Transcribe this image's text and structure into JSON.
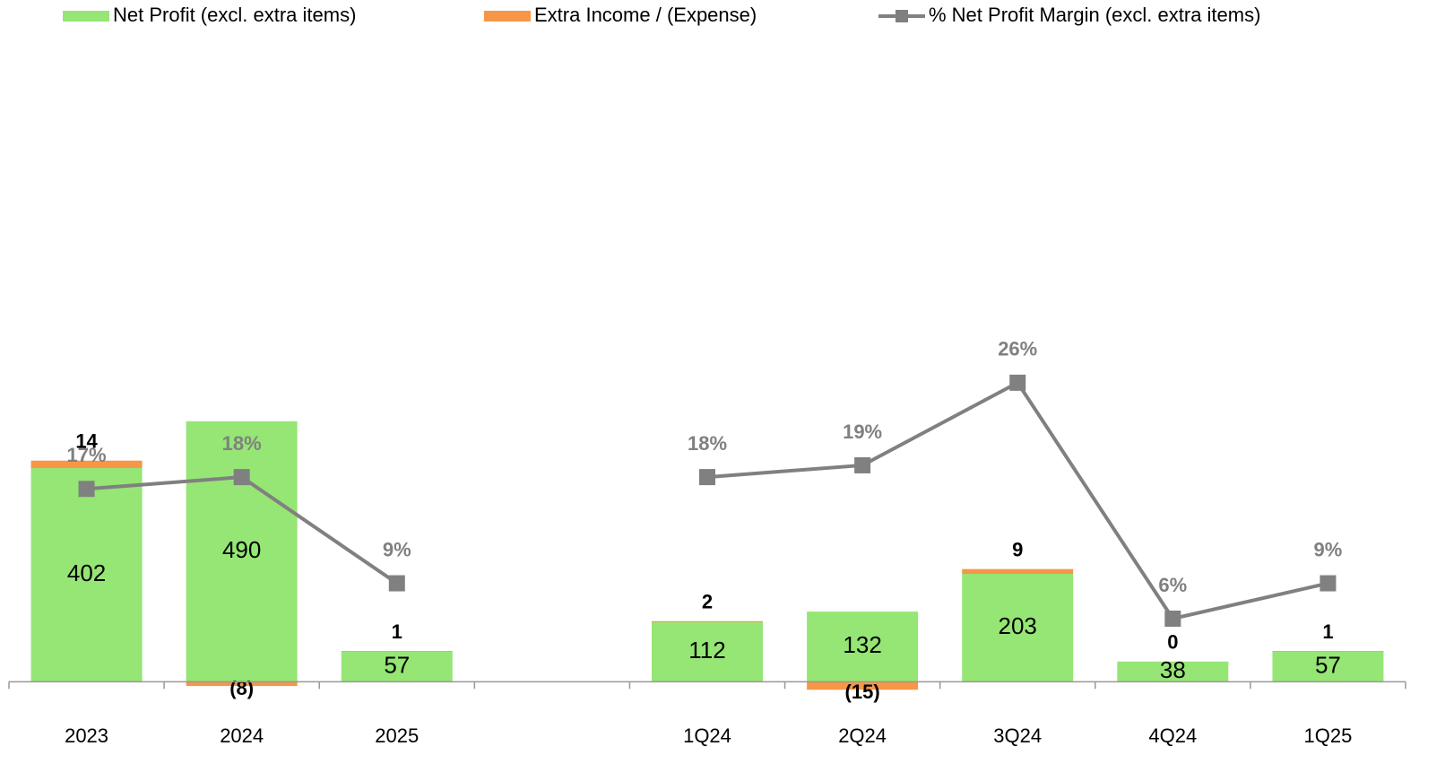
{
  "chart_data": {
    "type": "bar",
    "categories": [
      "2023",
      "2024",
      "2025",
      null,
      "1Q24",
      "2Q24",
      "3Q24",
      "4Q24",
      "1Q25"
    ],
    "series": [
      {
        "name": "Net Profit (excl. extra items)",
        "color": "#95e675",
        "values": [
          402,
          490,
          57,
          null,
          112,
          132,
          203,
          38,
          57
        ]
      },
      {
        "name": "Extra Income / (Expense)",
        "color": "#f79646",
        "values": [
          14,
          -8,
          1,
          null,
          2,
          -15,
          9,
          0,
          1
        ],
        "value_labels": [
          "14",
          "(8)",
          "1",
          null,
          "2",
          "(15)",
          "9",
          "0",
          "1"
        ]
      },
      {
        "name": "% Net Profit Margin (excl. extra items)",
        "color": "#808080",
        "type": "line",
        "axis": "y2",
        "values": [
          17,
          18,
          9,
          null,
          18,
          19,
          26,
          6,
          9
        ],
        "value_labels": [
          "17%",
          "18%",
          "9%",
          null,
          "18%",
          "19%",
          "26%",
          "6%",
          "9%"
        ]
      }
    ],
    "ylim": [
      -50,
      1215
    ],
    "y2lim": [
      -1.6,
      55.4
    ],
    "grid": false,
    "legend": "top"
  }
}
